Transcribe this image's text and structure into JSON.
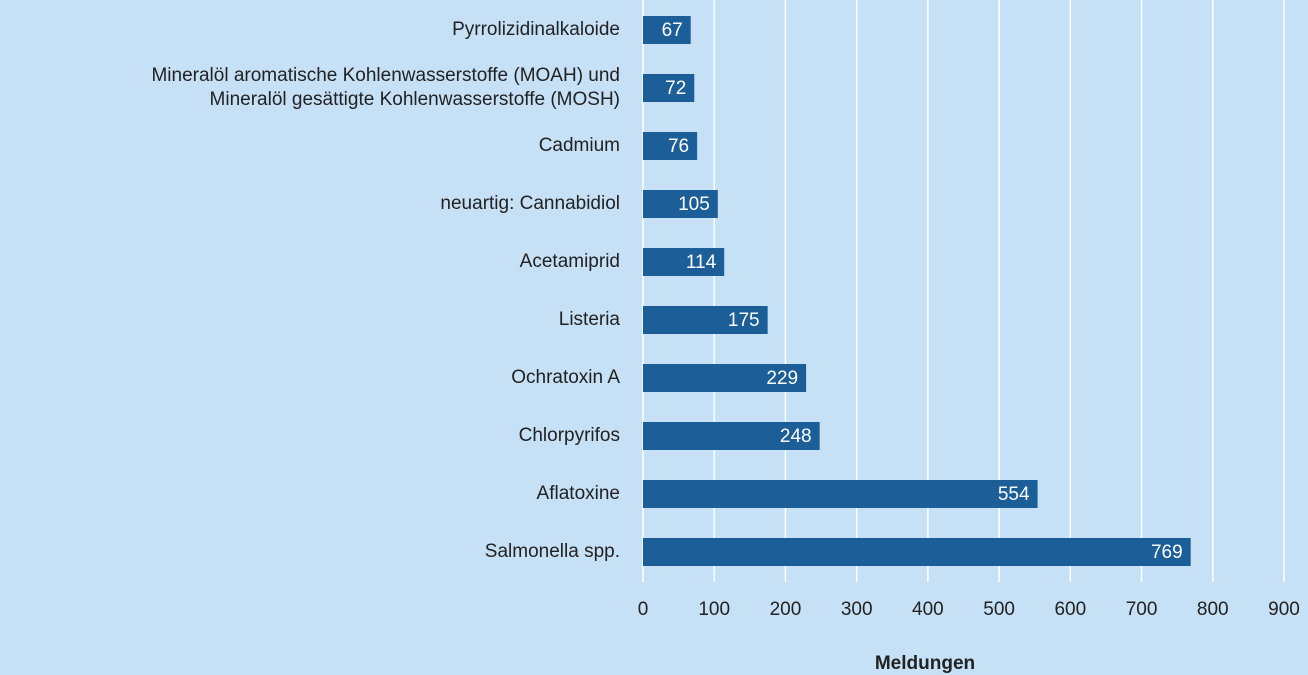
{
  "chart_data": {
    "type": "bar",
    "orientation": "horizontal",
    "categories": [
      "Pyrrolizidinalkaloide",
      "Mineralöl aromatische Kohlenwasserstoffe (MOAH) und\nMineralöl gesättigte Kohlenwasserstoffe (MOSH)",
      "Cadmium",
      "neuartig: Cannabidiol",
      "Acetamiprid",
      "Listeria",
      "Ochratoxin A",
      "Chlorpyrifos",
      "Aflatoxine",
      "Salmonella spp."
    ],
    "values": [
      67,
      72,
      76,
      105,
      114,
      175,
      229,
      248,
      554,
      769
    ],
    "color": "#1c5f98",
    "x_label": "Meldungen",
    "xlim": [
      0,
      900
    ],
    "xticks": [
      0,
      100,
      200,
      300,
      400,
      500,
      600,
      700,
      800,
      900
    ],
    "grid": true
  }
}
